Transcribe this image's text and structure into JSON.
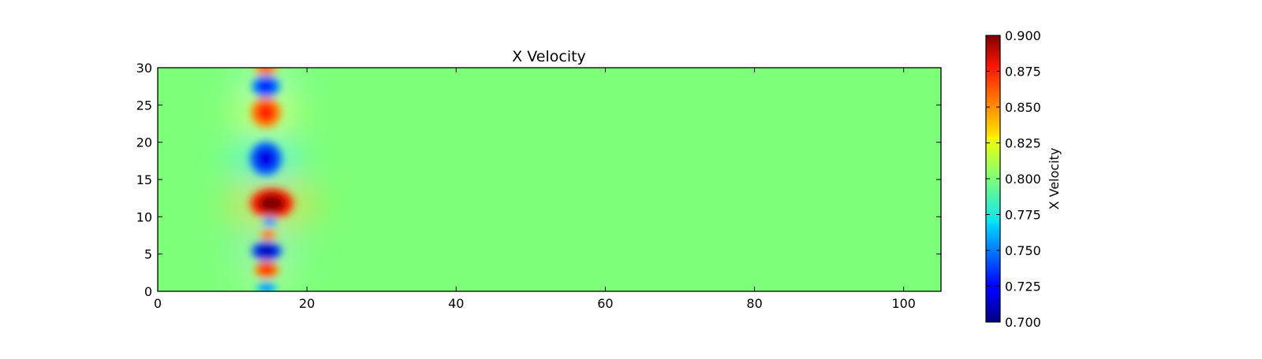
{
  "chart_data": {
    "type": "heatmap",
    "title": "X Velocity",
    "xlabel": "",
    "ylabel": "",
    "xlim": [
      0,
      105
    ],
    "ylim": [
      0,
      30
    ],
    "xticks": [
      0,
      20,
      40,
      60,
      80,
      100
    ],
    "xtick_labels": [
      "0",
      "20",
      "40",
      "60",
      "80",
      "100"
    ],
    "yticks": [
      0,
      5,
      10,
      15,
      20,
      25,
      30
    ],
    "ytick_labels": [
      "0",
      "5",
      "10",
      "15",
      "20",
      "25",
      "30"
    ],
    "grid": false,
    "colormap": "jet",
    "colorbar": {
      "label": "X Velocity",
      "range": [
        0.7,
        0.9
      ],
      "ticks": [
        0.7,
        0.725,
        0.75,
        0.775,
        0.8,
        0.825,
        0.85,
        0.875,
        0.9
      ],
      "tick_labels": [
        "0.700",
        "0.725",
        "0.750",
        "0.775",
        "0.800",
        "0.825",
        "0.850",
        "0.875",
        "0.900"
      ]
    },
    "background_value": 0.8,
    "features": [
      {
        "x": 14.5,
        "y": 30.0,
        "value": 0.86,
        "rx": 1.3,
        "ry": 0.8
      },
      {
        "x": 14.5,
        "y": 27.5,
        "value": 0.73,
        "rx": 1.5,
        "ry": 1.2
      },
      {
        "x": 14.5,
        "y": 24.0,
        "value": 0.87,
        "rx": 1.6,
        "ry": 1.6
      },
      {
        "x": 14.5,
        "y": 17.8,
        "value": 0.72,
        "rx": 1.7,
        "ry": 1.8
      },
      {
        "x": 15.3,
        "y": 11.8,
        "value": 0.9,
        "rx": 2.3,
        "ry": 1.6
      },
      {
        "x": 15.0,
        "y": 9.3,
        "value": 0.75,
        "rx": 0.8,
        "ry": 0.55
      },
      {
        "x": 14.8,
        "y": 7.6,
        "value": 0.86,
        "rx": 0.9,
        "ry": 0.55
      },
      {
        "x": 14.6,
        "y": 5.4,
        "value": 0.71,
        "rx": 1.6,
        "ry": 1.0
      },
      {
        "x": 14.6,
        "y": 2.9,
        "value": 0.87,
        "rx": 1.3,
        "ry": 0.9
      },
      {
        "x": 14.6,
        "y": 0.5,
        "value": 0.75,
        "rx": 1.1,
        "ry": 0.6
      }
    ]
  }
}
